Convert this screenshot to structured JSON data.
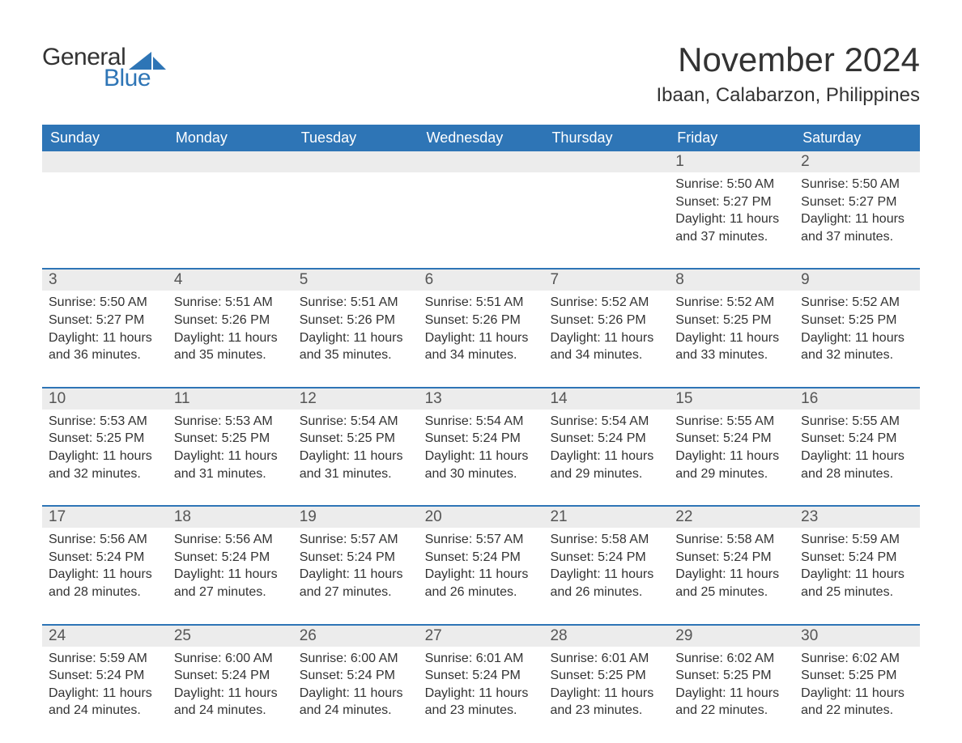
{
  "logo": {
    "text_general": "General",
    "text_blue": "Blue",
    "sail_color": "#2e75b6"
  },
  "title": "November 2024",
  "location": "Ibaan, Calabarzon, Philippines",
  "colors": {
    "header_bg": "#2e75b6",
    "header_text": "#ffffff",
    "daynum_bg": "#ececec",
    "daynum_text": "#555555",
    "body_text": "#333333",
    "week_border": "#2e75b6",
    "page_bg": "#ffffff"
  },
  "typography": {
    "title_fontsize_pt": 32,
    "location_fontsize_pt": 18,
    "dayheader_fontsize_pt": 14,
    "daynum_fontsize_pt": 14,
    "body_fontsize_pt": 12,
    "font_family": "Arial"
  },
  "day_headers": [
    "Sunday",
    "Monday",
    "Tuesday",
    "Wednesday",
    "Thursday",
    "Friday",
    "Saturday"
  ],
  "weeks": [
    [
      {
        "empty": true
      },
      {
        "empty": true
      },
      {
        "empty": true
      },
      {
        "empty": true
      },
      {
        "empty": true
      },
      {
        "n": "1",
        "sunrise": "Sunrise: 5:50 AM",
        "sunset": "Sunset: 5:27 PM",
        "d1": "Daylight: 11 hours",
        "d2": "and 37 minutes."
      },
      {
        "n": "2",
        "sunrise": "Sunrise: 5:50 AM",
        "sunset": "Sunset: 5:27 PM",
        "d1": "Daylight: 11 hours",
        "d2": "and 37 minutes."
      }
    ],
    [
      {
        "n": "3",
        "sunrise": "Sunrise: 5:50 AM",
        "sunset": "Sunset: 5:27 PM",
        "d1": "Daylight: 11 hours",
        "d2": "and 36 minutes."
      },
      {
        "n": "4",
        "sunrise": "Sunrise: 5:51 AM",
        "sunset": "Sunset: 5:26 PM",
        "d1": "Daylight: 11 hours",
        "d2": "and 35 minutes."
      },
      {
        "n": "5",
        "sunrise": "Sunrise: 5:51 AM",
        "sunset": "Sunset: 5:26 PM",
        "d1": "Daylight: 11 hours",
        "d2": "and 35 minutes."
      },
      {
        "n": "6",
        "sunrise": "Sunrise: 5:51 AM",
        "sunset": "Sunset: 5:26 PM",
        "d1": "Daylight: 11 hours",
        "d2": "and 34 minutes."
      },
      {
        "n": "7",
        "sunrise": "Sunrise: 5:52 AM",
        "sunset": "Sunset: 5:26 PM",
        "d1": "Daylight: 11 hours",
        "d2": "and 34 minutes."
      },
      {
        "n": "8",
        "sunrise": "Sunrise: 5:52 AM",
        "sunset": "Sunset: 5:25 PM",
        "d1": "Daylight: 11 hours",
        "d2": "and 33 minutes."
      },
      {
        "n": "9",
        "sunrise": "Sunrise: 5:52 AM",
        "sunset": "Sunset: 5:25 PM",
        "d1": "Daylight: 11 hours",
        "d2": "and 32 minutes."
      }
    ],
    [
      {
        "n": "10",
        "sunrise": "Sunrise: 5:53 AM",
        "sunset": "Sunset: 5:25 PM",
        "d1": "Daylight: 11 hours",
        "d2": "and 32 minutes."
      },
      {
        "n": "11",
        "sunrise": "Sunrise: 5:53 AM",
        "sunset": "Sunset: 5:25 PM",
        "d1": "Daylight: 11 hours",
        "d2": "and 31 minutes."
      },
      {
        "n": "12",
        "sunrise": "Sunrise: 5:54 AM",
        "sunset": "Sunset: 5:25 PM",
        "d1": "Daylight: 11 hours",
        "d2": "and 31 minutes."
      },
      {
        "n": "13",
        "sunrise": "Sunrise: 5:54 AM",
        "sunset": "Sunset: 5:24 PM",
        "d1": "Daylight: 11 hours",
        "d2": "and 30 minutes."
      },
      {
        "n": "14",
        "sunrise": "Sunrise: 5:54 AM",
        "sunset": "Sunset: 5:24 PM",
        "d1": "Daylight: 11 hours",
        "d2": "and 29 minutes."
      },
      {
        "n": "15",
        "sunrise": "Sunrise: 5:55 AM",
        "sunset": "Sunset: 5:24 PM",
        "d1": "Daylight: 11 hours",
        "d2": "and 29 minutes."
      },
      {
        "n": "16",
        "sunrise": "Sunrise: 5:55 AM",
        "sunset": "Sunset: 5:24 PM",
        "d1": "Daylight: 11 hours",
        "d2": "and 28 minutes."
      }
    ],
    [
      {
        "n": "17",
        "sunrise": "Sunrise: 5:56 AM",
        "sunset": "Sunset: 5:24 PM",
        "d1": "Daylight: 11 hours",
        "d2": "and 28 minutes."
      },
      {
        "n": "18",
        "sunrise": "Sunrise: 5:56 AM",
        "sunset": "Sunset: 5:24 PM",
        "d1": "Daylight: 11 hours",
        "d2": "and 27 minutes."
      },
      {
        "n": "19",
        "sunrise": "Sunrise: 5:57 AM",
        "sunset": "Sunset: 5:24 PM",
        "d1": "Daylight: 11 hours",
        "d2": "and 27 minutes."
      },
      {
        "n": "20",
        "sunrise": "Sunrise: 5:57 AM",
        "sunset": "Sunset: 5:24 PM",
        "d1": "Daylight: 11 hours",
        "d2": "and 26 minutes."
      },
      {
        "n": "21",
        "sunrise": "Sunrise: 5:58 AM",
        "sunset": "Sunset: 5:24 PM",
        "d1": "Daylight: 11 hours",
        "d2": "and 26 minutes."
      },
      {
        "n": "22",
        "sunrise": "Sunrise: 5:58 AM",
        "sunset": "Sunset: 5:24 PM",
        "d1": "Daylight: 11 hours",
        "d2": "and 25 minutes."
      },
      {
        "n": "23",
        "sunrise": "Sunrise: 5:59 AM",
        "sunset": "Sunset: 5:24 PM",
        "d1": "Daylight: 11 hours",
        "d2": "and 25 minutes."
      }
    ],
    [
      {
        "n": "24",
        "sunrise": "Sunrise: 5:59 AM",
        "sunset": "Sunset: 5:24 PM",
        "d1": "Daylight: 11 hours",
        "d2": "and 24 minutes."
      },
      {
        "n": "25",
        "sunrise": "Sunrise: 6:00 AM",
        "sunset": "Sunset: 5:24 PM",
        "d1": "Daylight: 11 hours",
        "d2": "and 24 minutes."
      },
      {
        "n": "26",
        "sunrise": "Sunrise: 6:00 AM",
        "sunset": "Sunset: 5:24 PM",
        "d1": "Daylight: 11 hours",
        "d2": "and 24 minutes."
      },
      {
        "n": "27",
        "sunrise": "Sunrise: 6:01 AM",
        "sunset": "Sunset: 5:24 PM",
        "d1": "Daylight: 11 hours",
        "d2": "and 23 minutes."
      },
      {
        "n": "28",
        "sunrise": "Sunrise: 6:01 AM",
        "sunset": "Sunset: 5:25 PM",
        "d1": "Daylight: 11 hours",
        "d2": "and 23 minutes."
      },
      {
        "n": "29",
        "sunrise": "Sunrise: 6:02 AM",
        "sunset": "Sunset: 5:25 PM",
        "d1": "Daylight: 11 hours",
        "d2": "and 22 minutes."
      },
      {
        "n": "30",
        "sunrise": "Sunrise: 6:02 AM",
        "sunset": "Sunset: 5:25 PM",
        "d1": "Daylight: 11 hours",
        "d2": "and 22 minutes."
      }
    ]
  ]
}
